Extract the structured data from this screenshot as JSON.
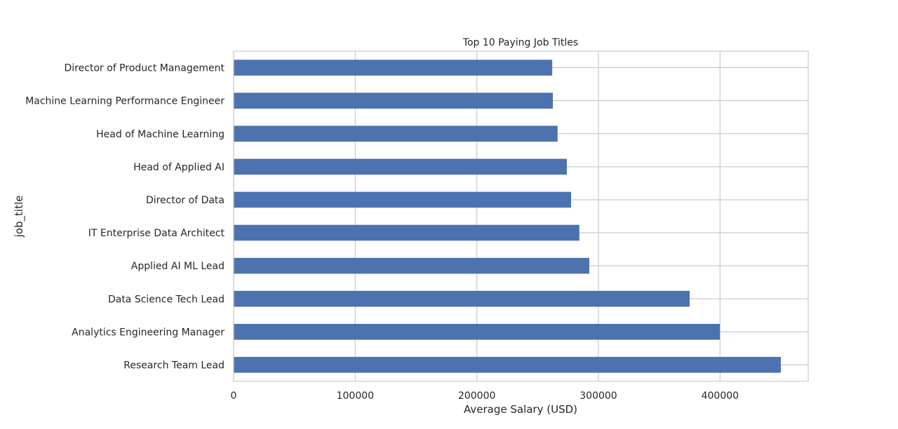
{
  "chart_data": {
    "type": "bar",
    "orientation": "horizontal",
    "title": "Top 10 Paying Job Titles",
    "xlabel": "Average Salary (USD)",
    "ylabel": "job_title",
    "categories": [
      "Research Team Lead",
      "Analytics Engineering Manager",
      "Data Science Tech Lead",
      "Applied AI ML Lead",
      "IT Enterprise Data Architect",
      "Director of Data",
      "Head of Applied AI",
      "Head of Machine Learning",
      "Machine Learning Performance Engineer",
      "Director of Product Management"
    ],
    "values": [
      450000,
      399880,
      375000,
      292500,
      284310,
      277500,
      274000,
      266400,
      262500,
      262000
    ],
    "xlim": [
      0,
      472500
    ],
    "xticks": [
      0,
      100000,
      200000,
      300000,
      400000
    ],
    "xtick_labels": [
      "0",
      "100000",
      "200000",
      "300000",
      "400000"
    ],
    "grid": true,
    "bar_color": "#4c72b0"
  }
}
